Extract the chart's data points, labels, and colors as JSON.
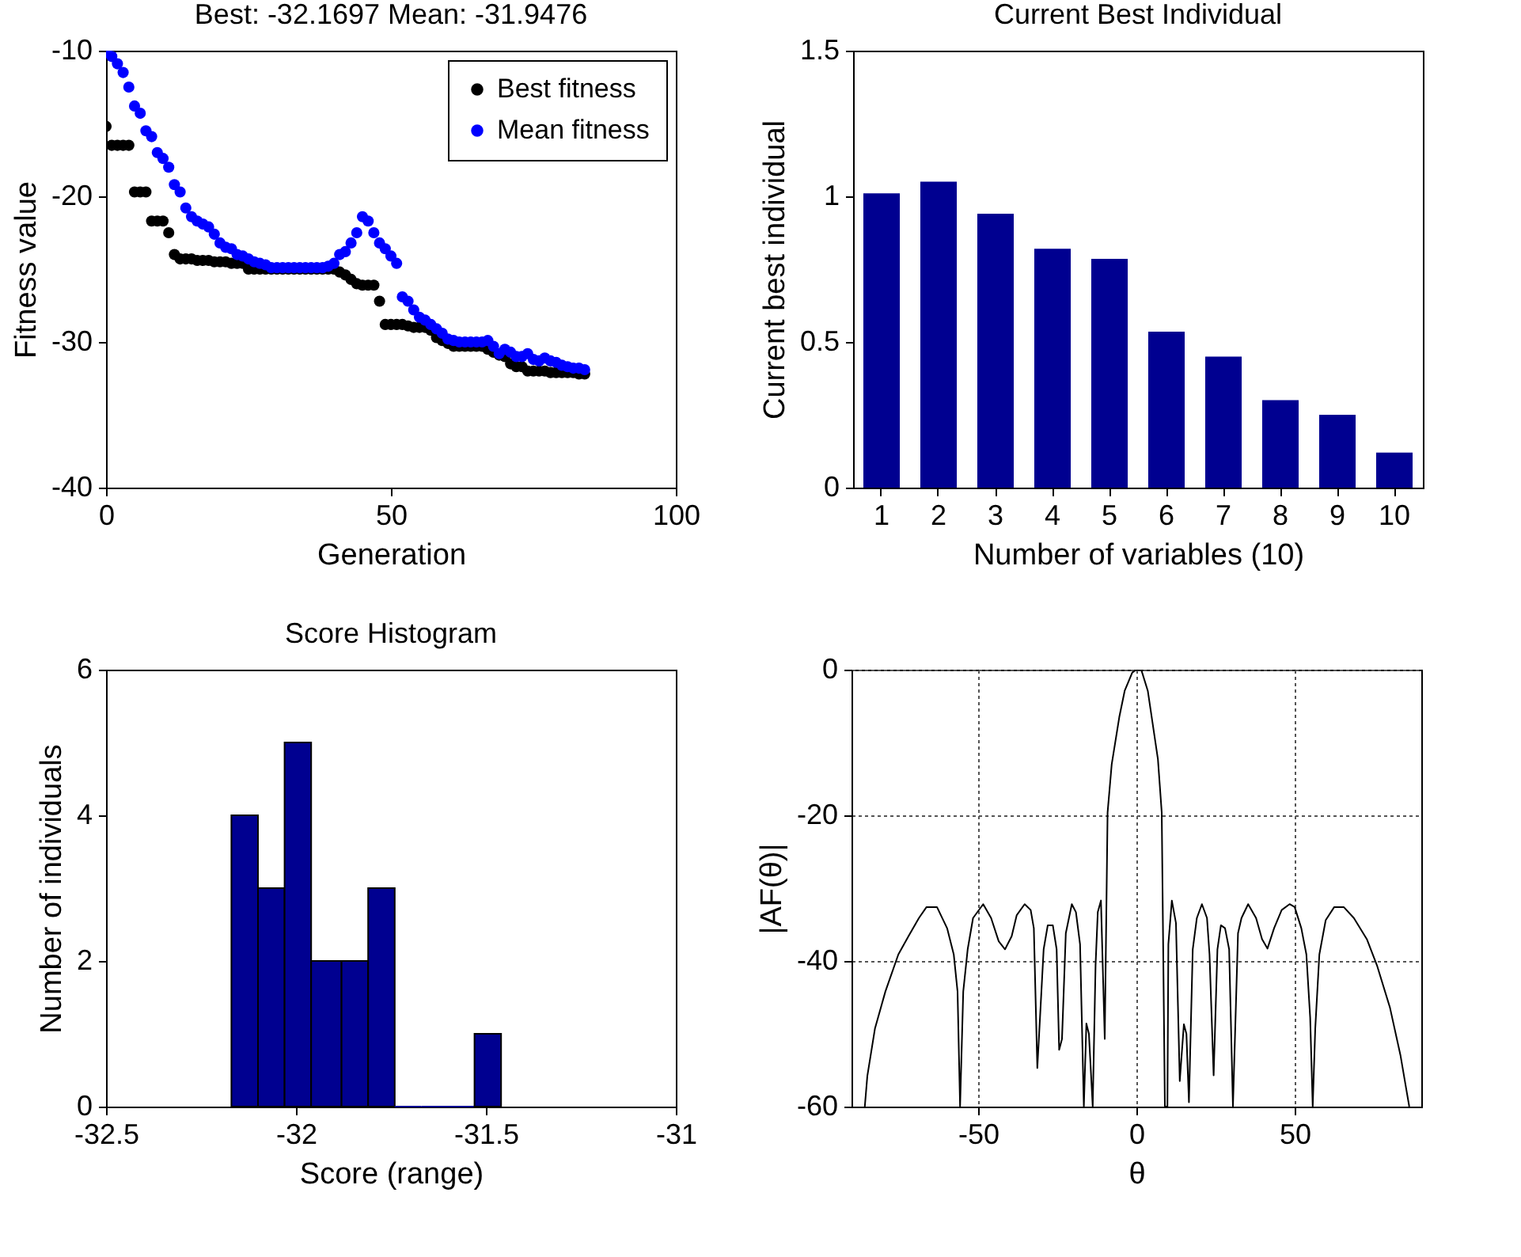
{
  "chart_data": [
    {
      "type": "scatter",
      "title": "Best: -32.1697 Mean: -31.9476",
      "xlabel": "Generation",
      "ylabel": "Fitness value",
      "x": [
        0,
        1,
        2,
        3,
        4,
        5,
        6,
        7,
        8,
        9,
        10,
        11,
        12,
        13,
        14,
        15,
        16,
        17,
        18,
        19,
        20,
        21,
        22,
        23,
        24,
        25,
        26,
        27,
        28,
        29,
        30,
        31,
        32,
        33,
        34,
        35,
        36,
        37,
        38,
        39,
        40,
        41,
        42,
        43,
        44,
        45,
        46,
        47,
        48,
        49,
        50,
        51,
        52,
        53,
        54,
        55,
        56,
        57,
        58,
        59,
        60,
        61,
        62,
        63,
        64,
        65,
        66,
        67,
        68,
        69,
        70,
        71,
        72,
        73,
        74,
        75,
        76,
        77,
        78,
        79,
        80,
        81,
        82,
        83,
        84
      ],
      "series": [
        {
          "name": "Best fitness",
          "color": "#000000",
          "values": [
            -15.2,
            -16.5,
            -16.5,
            -16.5,
            -16.5,
            -19.7,
            -19.7,
            -19.7,
            -21.7,
            -21.7,
            -21.7,
            -22.5,
            -24.0,
            -24.3,
            -24.3,
            -24.3,
            -24.4,
            -24.4,
            -24.4,
            -24.5,
            -24.5,
            -24.5,
            -24.6,
            -24.6,
            -24.6,
            -25.0,
            -25.0,
            -25.0,
            -25.0,
            -25.0,
            -25.0,
            -25.0,
            -25.0,
            -25.0,
            -25.0,
            -25.0,
            -25.0,
            -25.0,
            -25.0,
            -25.0,
            -25.0,
            -25.2,
            -25.4,
            -25.7,
            -26.0,
            -26.1,
            -26.1,
            -26.1,
            -27.2,
            -28.8,
            -28.8,
            -28.8,
            -28.8,
            -28.9,
            -29.0,
            -29.0,
            -29.0,
            -29.2,
            -29.7,
            -29.9,
            -30.1,
            -30.3,
            -30.3,
            -30.3,
            -30.3,
            -30.3,
            -30.3,
            -30.5,
            -30.7,
            -30.9,
            -31.0,
            -31.5,
            -31.7,
            -31.7,
            -32.0,
            -32.0,
            -32.0,
            -32.0,
            -32.1,
            -32.1,
            -32.1,
            -32.1,
            -32.1,
            -32.2,
            -32.2
          ]
        },
        {
          "name": "Mean fitness",
          "color": "#0000ff",
          "values": [
            -10.1,
            -10.4,
            -10.9,
            -11.5,
            -12.5,
            -13.8,
            -14.3,
            -15.5,
            -15.9,
            -17.0,
            -17.4,
            -18.0,
            -19.2,
            -19.7,
            -20.8,
            -21.4,
            -21.7,
            -21.9,
            -22.1,
            -22.6,
            -23.2,
            -23.5,
            -23.6,
            -24.0,
            -24.1,
            -24.3,
            -24.5,
            -24.6,
            -24.7,
            -24.9,
            -24.9,
            -24.9,
            -24.9,
            -24.9,
            -24.9,
            -24.9,
            -24.9,
            -24.9,
            -24.9,
            -24.8,
            -24.6,
            -24.0,
            -23.8,
            -23.2,
            -22.5,
            -21.4,
            -21.7,
            -22.5,
            -23.2,
            -23.6,
            -24.1,
            -24.6,
            -26.9,
            -27.2,
            -27.8,
            -28.3,
            -28.5,
            -28.8,
            -29.1,
            -29.4,
            -29.8,
            -29.9,
            -30.0,
            -30.0,
            -30.0,
            -30.0,
            -30.0,
            -29.9,
            -30.3,
            -30.8,
            -30.5,
            -30.7,
            -31.0,
            -31.0,
            -30.8,
            -31.2,
            -31.3,
            -31.1,
            -31.3,
            -31.4,
            -31.6,
            -31.7,
            -31.8,
            -31.8,
            -31.9
          ]
        }
      ],
      "xlim": [
        0,
        100
      ],
      "xticks": [
        0,
        50,
        100
      ],
      "ylim": [
        -40,
        -10
      ],
      "yticks": [
        -40,
        -30,
        -20,
        -10
      ],
      "legend": "top right",
      "marker": "circle"
    },
    {
      "type": "bar",
      "title": "Current Best Individual",
      "xlabel": "Number of variables (10)",
      "ylabel": "Current best individual",
      "categories": [
        "1",
        "2",
        "3",
        "4",
        "5",
        "6",
        "7",
        "8",
        "9",
        "10"
      ],
      "values": [
        1.01,
        1.05,
        0.94,
        0.82,
        0.785,
        0.535,
        0.45,
        0.3,
        0.25,
        0.12
      ],
      "color": "#000090",
      "ylim": [
        0,
        1.5
      ],
      "yticks": [
        0,
        0.5,
        1,
        1.5
      ]
    },
    {
      "type": "histogram",
      "title": "Score Histogram",
      "xlabel": "Score (range)",
      "ylabel": "Number of individuals",
      "bins": [
        -32.17,
        -32.1,
        -32.03,
        -31.96,
        -31.88,
        -31.81,
        -31.74,
        -31.67,
        -31.6,
        -31.53,
        -31.46
      ],
      "values": [
        4,
        3,
        5,
        2,
        2,
        3,
        0,
        0,
        0,
        1
      ],
      "color": "#000090",
      "xlim": [
        -32.5,
        -31
      ],
      "xticks": [
        -32.5,
        -32,
        -31.5,
        -31
      ],
      "ylim": [
        0,
        6
      ],
      "yticks": [
        0,
        2,
        4,
        6
      ]
    },
    {
      "type": "line",
      "xlabel": "θ",
      "ylabel": "|AF(θ)|",
      "color": "#000000",
      "x": [
        -85.8,
        -85.0,
        -82.6,
        -79.3,
        -75.2,
        -72.0,
        -68.7,
        -66.3,
        -63.0,
        -59.8,
        -57.7,
        -56.5,
        -55.7,
        -54.7,
        -53.3,
        -51.6,
        -48.4,
        -45.9,
        -43.5,
        -41.5,
        -39.4,
        -37.8,
        -35.3,
        -33.4,
        -32.4,
        -31.3,
        -29.3,
        -28.0,
        -26.4,
        -25.2,
        -24.4,
        -23.5,
        -22.3,
        -20.4,
        -19.1,
        -17.8,
        -16.6,
        -15.8,
        -15.0,
        -13.8,
        -12.9,
        -12.2,
        -11.2,
        -10.0,
        -9.1,
        -7.8,
        -5.4,
        -3.7,
        -1.3,
        0,
        1.6,
        3.6,
        6.8,
        8.0,
        9.0,
        9.8,
        10.1,
        11.2,
        12.5,
        13.7,
        15.0,
        15.8,
        16.6,
        17.8,
        19.1,
        20.7,
        22.3,
        23.1,
        24.4,
        25.6,
        26.7,
        28.0,
        29.3,
        30.5,
        32.1,
        33.2,
        35.3,
        37.8,
        39.7,
        41.4,
        43.5,
        45.9,
        48.4,
        50.0,
        52.1,
        53.7,
        54.9,
        55.7,
        56.5,
        57.8,
        59.8,
        62.5,
        65.5,
        68.7,
        72.8,
        76.0,
        80.1,
        83.4,
        86.2
      ],
      "values": [
        -60,
        -55.8,
        -49.3,
        -44.2,
        -39.1,
        -36.6,
        -34.1,
        -32.6,
        -32.6,
        -35.5,
        -39.1,
        -44.2,
        -60,
        -44.2,
        -38.4,
        -34.1,
        -32.2,
        -34.1,
        -37.3,
        -38.4,
        -36.6,
        -33.7,
        -32.2,
        -33.0,
        -35.5,
        -54.7,
        -38.4,
        -35.1,
        -35.1,
        -38.4,
        -52.2,
        -50.7,
        -36.2,
        -32.2,
        -33.3,
        -37.7,
        -60,
        -48.6,
        -50,
        -60,
        -40.6,
        -33.3,
        -31.7,
        -50.7,
        -19.6,
        -13,
        -6.5,
        -2.9,
        -0.4,
        0,
        -0.1,
        -2.9,
        -12.3,
        -19.6,
        -60,
        -60,
        -37.7,
        -31.7,
        -34.8,
        -56.5,
        -48.7,
        -50,
        -59.4,
        -38.4,
        -34.1,
        -32.2,
        -34.1,
        -39.1,
        -55.7,
        -38.4,
        -35.1,
        -35.5,
        -38.4,
        -60,
        -36.2,
        -34.1,
        -32.2,
        -34.1,
        -37.0,
        -38.3,
        -35.5,
        -33.0,
        -32.2,
        -32.6,
        -35.5,
        -39.1,
        -47.8,
        -60,
        -49.3,
        -39.1,
        -34.4,
        -32.6,
        -32.6,
        -34.1,
        -37.0,
        -40.6,
        -46.4,
        -52.9,
        -60
      ],
      "xlim": [
        -90,
        90
      ],
      "xticks": [
        -50,
        0,
        50
      ],
      "ylim": [
        -60,
        0
      ],
      "yticks": [
        -60,
        -40,
        -20,
        0
      ],
      "grid": true
    }
  ]
}
